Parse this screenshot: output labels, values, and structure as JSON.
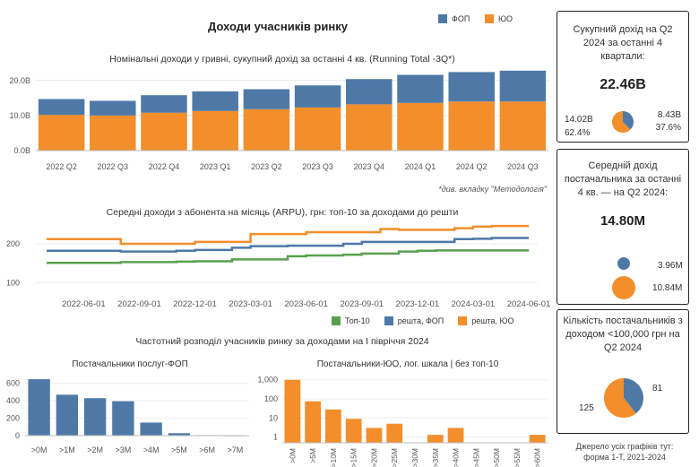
{
  "header": {
    "title": "Доходи учасників ринку",
    "legend": [
      {
        "label": "ФОП",
        "color": "#4e79a7"
      },
      {
        "label": "ЮО",
        "color": "#f28e2b"
      }
    ]
  },
  "colors": {
    "fop": "#4e79a7",
    "yuo": "#f28e2b",
    "top10": "#59a14f"
  },
  "chart_data": [
    {
      "id": "nominal",
      "type": "bar",
      "stacked": true,
      "title": "Номінальні доходи у гривні, сукупний дохід за останні 4 кв. (Running Total -3Q*)",
      "categories": [
        "2022 Q2",
        "2022 Q3",
        "2022 Q4",
        "2023 Q1",
        "2023 Q2",
        "2023 Q3",
        "2023 Q4",
        "2024 Q1",
        "2024 Q2",
        "2024 Q3"
      ],
      "series": [
        {
          "name": "ЮО",
          "values": [
            10.2,
            10.0,
            10.8,
            11.3,
            11.8,
            12.3,
            13.2,
            13.6,
            14.0,
            14.0
          ]
        },
        {
          "name": "ФОП",
          "values": [
            4.5,
            4.2,
            5.0,
            5.6,
            5.7,
            6.3,
            7.2,
            8.0,
            8.4,
            8.8
          ]
        }
      ],
      "yticks": [
        "0.0B",
        "10.0B",
        "20.0B"
      ],
      "ylim": [
        0,
        22.5
      ],
      "note": "*див. вкладку \"Методологія\""
    },
    {
      "id": "arpu",
      "type": "line",
      "title": "Середні доходи з  абонента на місяць (ARPU), грн: топ-10 за доходами до решти",
      "x": [
        "2022-04",
        "2022-05",
        "2022-06",
        "2022-07",
        "2022-08",
        "2022-09",
        "2022-10",
        "2022-11",
        "2022-12",
        "2023-01",
        "2023-02",
        "2023-03",
        "2023-04",
        "2023-05",
        "2023-06",
        "2023-07",
        "2023-08",
        "2023-09",
        "2023-10",
        "2023-11",
        "2023-12",
        "2024-01",
        "2024-02",
        "2024-03",
        "2024-04",
        "2024-05",
        "2024-06"
      ],
      "xtick_labels": [
        "2022-06-01",
        "2022-09-01",
        "2022-12-01",
        "2023-03-01",
        "2023-06-01",
        "2023-09-01",
        "2023-12-01",
        "2024-03-01",
        "2024-06-01"
      ],
      "yticks": [
        100,
        200
      ],
      "ylim": [
        80,
        260
      ],
      "series": [
        {
          "name": "Топ-10",
          "values": [
            151,
            151,
            151,
            151,
            153,
            153,
            153,
            154,
            155,
            155,
            160,
            160,
            160,
            168,
            170,
            170,
            172,
            175,
            175,
            180,
            182,
            183,
            183,
            183,
            183,
            183,
            183
          ]
        },
        {
          "name": "решта, ФОП",
          "values": [
            182,
            182,
            182,
            182,
            180,
            180,
            180,
            182,
            184,
            184,
            190,
            194,
            194,
            195,
            195,
            195,
            200,
            205,
            205,
            205,
            205,
            205,
            212,
            213,
            215,
            215,
            215
          ]
        },
        {
          "name": "решта, ЮО",
          "values": [
            212,
            212,
            212,
            212,
            200,
            200,
            200,
            200,
            205,
            205,
            205,
            225,
            225,
            225,
            230,
            230,
            230,
            230,
            238,
            236,
            236,
            236,
            240,
            244,
            246,
            246,
            246
          ]
        }
      ],
      "legend": [
        "Топ-10",
        "решта, ФОП",
        "решта, ЮО"
      ]
    },
    {
      "id": "hist_fop",
      "type": "bar",
      "section_title": "Частотний розподіл учасників ринку за доходами на І півріччя 2024",
      "title": "Постачальники послуг-ФОП",
      "categories": [
        ">0M",
        ">1M",
        ">2M",
        ">3M",
        ">4M",
        ">5M",
        ">6M",
        ">7M"
      ],
      "values": [
        648,
        470,
        430,
        395,
        150,
        28,
        6,
        2
      ],
      "yticks": [
        0,
        200,
        400,
        600
      ],
      "ylim": [
        0,
        700
      ]
    },
    {
      "id": "hist_yuo",
      "type": "bar",
      "title": "Постачальники-ЮО, лог. шкала | без топ-10",
      "scale": "log",
      "categories": [
        ">0M",
        ">5M",
        ">10M",
        ">15M",
        ">20M",
        ">25M",
        ">30M",
        ">35M",
        ">40M",
        ">45M",
        ">50M",
        ">55M",
        ">60M"
      ],
      "values": [
        1000,
        75,
        28,
        9,
        3,
        5,
        0,
        1.3,
        3,
        0,
        0,
        0,
        1.3
      ],
      "yticks": [
        "1",
        "10",
        "100",
        "1,000"
      ],
      "ylim": [
        0.5,
        1500
      ]
    }
  ],
  "cards": {
    "total": {
      "title": "Сукупний дохід на Q2 2024 за останні 4 квартали:",
      "value": "22.46B",
      "left_value": "14.02B",
      "left_pct": "62.4%",
      "right_value": "8.43B",
      "right_pct": "37.6%",
      "pie": [
        62.4,
        37.6
      ]
    },
    "avg": {
      "title": "Середній дохід постачальника за останні 4 кв. — на Q2 2024:",
      "value": "14.80M",
      "fop_value": "3.96M",
      "yuo_value": "10.84M"
    },
    "count": {
      "title": "Кількість постачальників з доходом <100,000 грн на Q2 2024",
      "fop_value": "81",
      "yuo_value": "125",
      "pie": [
        125,
        81
      ]
    }
  },
  "source": "Джерело усіх графіків тут: форма 1-Т, 2021-2024"
}
